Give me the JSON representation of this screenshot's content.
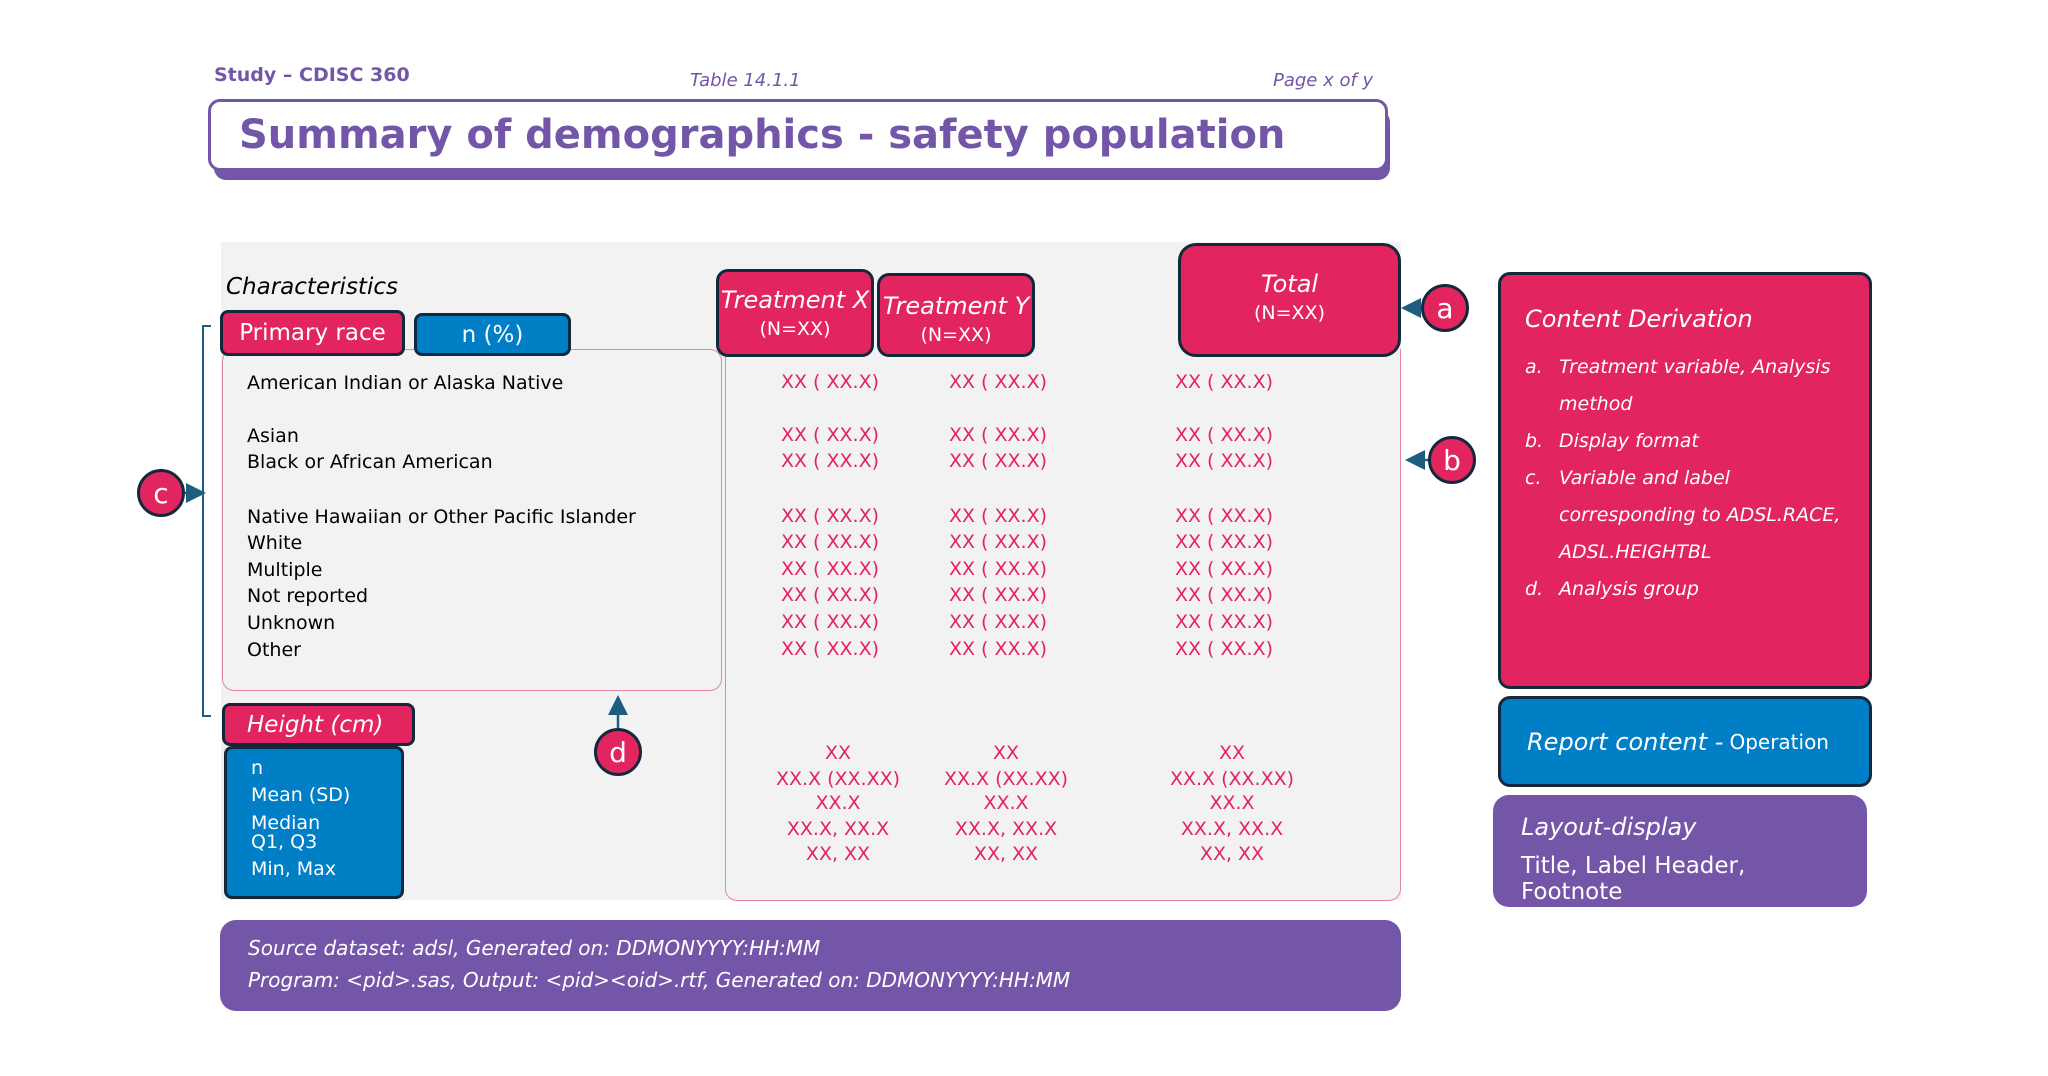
{
  "header": {
    "study": "Study – CDISC 360",
    "table_number": "Table 14.1.1",
    "page": "Page x of y",
    "title": "Summary of demographics - safety population"
  },
  "table": {
    "characteristics_label": "Characteristics",
    "primary_race_label": "Primary race",
    "n_pct_label": "n (%)",
    "columns": [
      {
        "label": "Treatment X",
        "n": "(N=XX)"
      },
      {
        "label": "Treatment Y",
        "n": "(N=XX)"
      },
      {
        "label": "Total",
        "n": "(N=XX)"
      }
    ],
    "race_rows": [
      {
        "label": "American Indian or Alaska Native",
        "values": [
          "XX ( XX.X)",
          "XX ( XX.X)",
          "XX ( XX.X)"
        ]
      },
      {
        "label": "Asian",
        "values": [
          "XX ( XX.X)",
          "XX ( XX.X)",
          "XX ( XX.X)"
        ]
      },
      {
        "label": "Black or African American",
        "values": [
          "XX ( XX.X)",
          "XX ( XX.X)",
          "XX ( XX.X)"
        ]
      },
      {
        "label": "Native Hawaiian or Other Pacific Islander",
        "values": [
          "XX ( XX.X)",
          "XX ( XX.X)",
          "XX ( XX.X)"
        ]
      },
      {
        "label": "White",
        "values": [
          "XX ( XX.X)",
          "XX ( XX.X)",
          "XX ( XX.X)"
        ]
      },
      {
        "label": "Multiple",
        "values": [
          "XX ( XX.X)",
          "XX ( XX.X)",
          "XX ( XX.X)"
        ]
      },
      {
        "label": "Not reported",
        "values": [
          "XX ( XX.X)",
          "XX ( XX.X)",
          "XX ( XX.X)"
        ]
      },
      {
        "label": "Unknown",
        "values": [
          "XX ( XX.X)",
          "XX ( XX.X)",
          "XX ( XX.X)"
        ]
      },
      {
        "label": "Other",
        "values": [
          "XX ( XX.X)",
          "XX ( XX.X)",
          "XX ( XX.X)"
        ]
      }
    ],
    "height_label": "Height (cm)",
    "height_rows": [
      {
        "label": "n",
        "values": [
          "XX",
          "XX",
          "XX"
        ]
      },
      {
        "label": "Mean (SD)",
        "values": [
          "XX.X (XX.XX)",
          "XX.X (XX.XX)",
          "XX.X (XX.XX)"
        ]
      },
      {
        "label": "Median",
        "values": [
          "XX.X",
          "XX.X",
          "XX.X"
        ]
      },
      {
        "label": "Q1, Q3",
        "values": [
          "XX.X, XX.X",
          "XX.X, XX.X",
          "XX.X, XX.X"
        ]
      },
      {
        "label": "Min, Max",
        "values": [
          "XX, XX",
          "XX, XX",
          "XX, XX"
        ]
      }
    ]
  },
  "callouts": {
    "a": "a",
    "b": "b",
    "c": "c",
    "d": "d"
  },
  "footer": {
    "line1": "Source dataset: adsl, Generated on: DDMONYYYY:HH:MM",
    "line2": "Program: <pid>.sas, Output: <pid><oid>.rtf, Generated on: DDMONYYYY:HH:MM"
  },
  "legend": {
    "content_derivation": {
      "title": "Content Derivation",
      "items": [
        {
          "key": "a.",
          "text": "Treatment variable, Analysis method"
        },
        {
          "key": "b.",
          "text": "Display format"
        },
        {
          "key": "c.",
          "text": "Variable and label corresponding to ADSL.RACE, ADSL.HEIGHTBL"
        },
        {
          "key": "d.",
          "text": "Analysis group"
        }
      ]
    },
    "report_content": {
      "title": "Report content -",
      "subtitle": "Operation"
    },
    "layout_display": {
      "title": "Layout-display",
      "subtitle": "Title, Label Header, Footnote"
    }
  },
  "colors": {
    "pink": "#e2245f",
    "blue": "#007ec6",
    "purple": "#7456a8",
    "dark_outline": "#13283a",
    "panel_gray": "#f2f2f2",
    "arrow_teal": "#1d5e80"
  }
}
